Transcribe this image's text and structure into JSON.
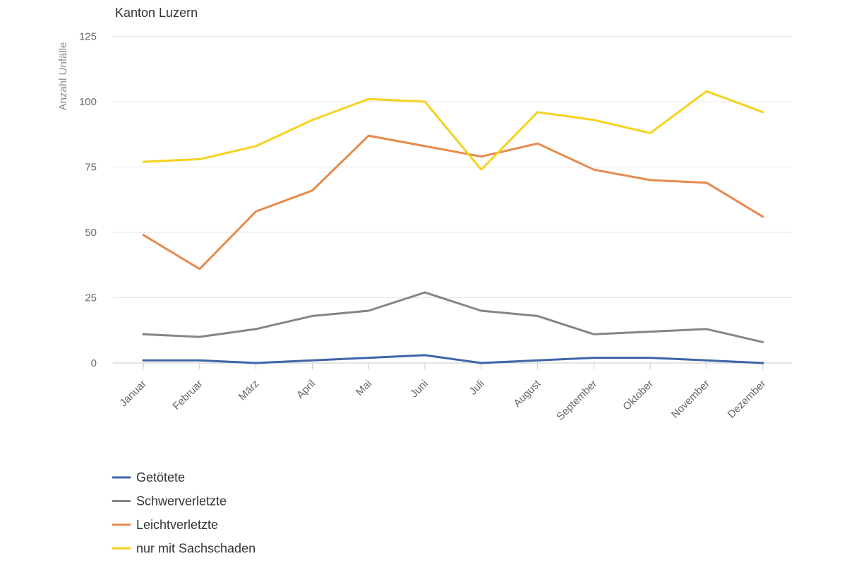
{
  "chart_data": {
    "type": "line",
    "title": "Kanton Luzern",
    "ylabel": "Anzahl Unfälle",
    "xlabel": "",
    "ylim": [
      0,
      125
    ],
    "yticks": [
      0,
      25,
      50,
      75,
      100,
      125
    ],
    "grid": true,
    "legend_position": "bottom-left",
    "categories": [
      "Januar",
      "Februar",
      "März",
      "April",
      "Mai",
      "Juni",
      "Juli",
      "August",
      "September",
      "Oktober",
      "November",
      "Dezember"
    ],
    "series": [
      {
        "name": "Getötete",
        "color": "#3e64a8",
        "values": [
          1,
          1,
          0,
          1,
          2,
          3,
          0,
          1,
          2,
          2,
          1,
          0
        ]
      },
      {
        "name": "Schwerverletzte",
        "color": "#858585",
        "values": [
          11,
          10,
          13,
          18,
          20,
          27,
          20,
          18,
          11,
          12,
          13,
          8
        ]
      },
      {
        "name": "Leichtverletzte",
        "color": "#e8894a",
        "values": [
          49,
          36,
          58,
          66,
          87,
          83,
          79,
          84,
          74,
          70,
          69,
          56
        ]
      },
      {
        "name": "nur mit Sachschaden",
        "color": "#f5d21e",
        "values": [
          77,
          78,
          83,
          93,
          101,
          100,
          74,
          96,
          93,
          88,
          104,
          96
        ]
      }
    ]
  }
}
